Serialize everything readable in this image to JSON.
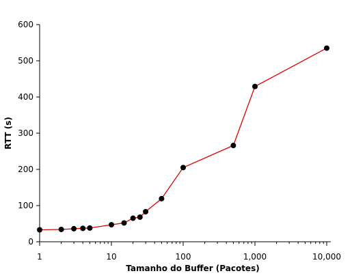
{
  "chart_data": {
    "type": "line",
    "title": "",
    "xlabel": "Tamanho do Buffer (Pacotes)",
    "ylabel": "RTT (s)",
    "x_scale": "log",
    "xlim": [
      1,
      10000
    ],
    "ylim": [
      0,
      600
    ],
    "x_ticks": [
      1,
      10,
      100,
      1000,
      10000
    ],
    "x_tick_labels": [
      "1",
      "10",
      "100",
      "1,000",
      "10,000"
    ],
    "y_ticks": [
      0,
      100,
      200,
      300,
      400,
      500,
      600
    ],
    "y_tick_labels": [
      "0",
      "100",
      "200",
      "300",
      "400",
      "500",
      "600"
    ],
    "grid": false,
    "legend": "none",
    "line_color": "#e00000",
    "marker_color": "#000000",
    "series": [
      {
        "x": [
          1,
          2,
          3,
          4,
          5,
          10,
          15,
          20,
          25,
          30,
          50,
          100,
          500,
          1000,
          10000
        ],
        "y": [
          33,
          34,
          36,
          37,
          38,
          47,
          52,
          65,
          68,
          83,
          119,
          205,
          266,
          429,
          535
        ]
      }
    ]
  }
}
